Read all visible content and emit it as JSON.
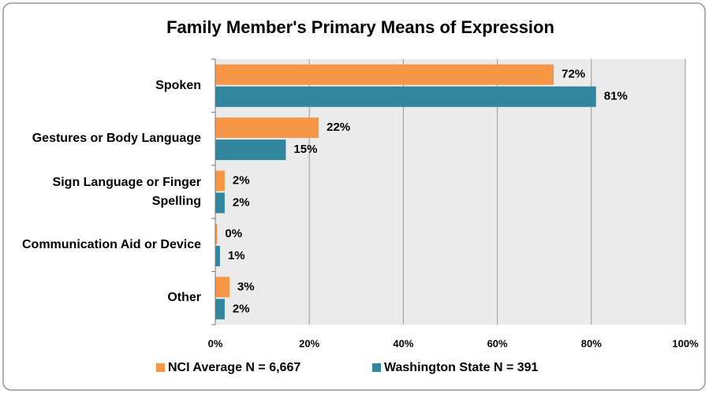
{
  "chart_data": {
    "type": "bar",
    "orientation": "horizontal",
    "title": "Family Member's Primary Means of Expression",
    "categories": [
      "Spoken",
      "Gestures or Body Language",
      "Sign Language or Finger Spelling",
      "Communication Aid or Device",
      "Other"
    ],
    "series": [
      {
        "name": "NCI Average N = 6,667",
        "color": "#f79646",
        "values": [
          72,
          22,
          2,
          0.4,
          3
        ],
        "value_labels": [
          "72%",
          "22%",
          "2%",
          "0%",
          "3%"
        ]
      },
      {
        "name": "Washington State N = 391",
        "color": "#31859c",
        "values": [
          81,
          15,
          2,
          1,
          2
        ],
        "value_labels": [
          "81%",
          "15%",
          "2%",
          "1%",
          "2%"
        ]
      }
    ],
    "xlim": [
      0,
      100
    ],
    "xticks": [
      {
        "value": 0,
        "label": "0%"
      },
      {
        "value": 20,
        "label": "20%"
      },
      {
        "value": 40,
        "label": "40%"
      },
      {
        "value": 60,
        "label": "60%"
      },
      {
        "value": 80,
        "label": "80%"
      },
      {
        "value": 100,
        "label": "100%"
      }
    ],
    "grid": true,
    "legend": "bottom"
  }
}
